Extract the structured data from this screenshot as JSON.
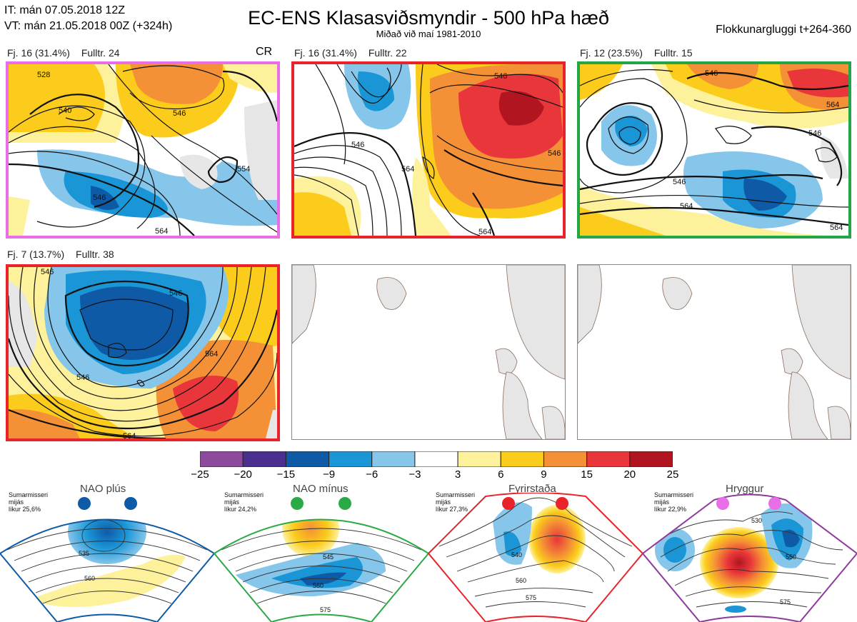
{
  "header": {
    "it_line": "IT: mán 07.05.2018 12Z",
    "vt_line": "VT: mán 21.05.2018 00Z  (+324h)",
    "title": "EC-ENS Klasasviðsmyndir - 500 hPa hæð",
    "subtitle": "Miðað við maí 1981-2010",
    "window": "Flokkunargluggi t+264-360"
  },
  "panels": [
    {
      "count": "Fj. 16 (31.4%)",
      "rep": "Fulltr. 24",
      "regime": "CR",
      "border_color": "#e86ee8",
      "contour_labels": [
        "528",
        "540",
        "546",
        "554",
        "546",
        "564"
      ]
    },
    {
      "count": "Fj. 16 (31.4%)",
      "rep": "Fulltr. 22",
      "border_color": "#e8232a",
      "contour_labels": [
        "546",
        "546",
        "564",
        "546",
        "564"
      ]
    },
    {
      "count": "Fj. 12 (23.5%)",
      "rep": "Fulltr. 15",
      "border_color": "#23a647",
      "contour_labels": [
        "546",
        "564",
        "546",
        "546",
        "564",
        "564"
      ]
    },
    {
      "count": "Fj. 7 (13.7%)",
      "rep": "Fulltr. 38",
      "border_color": "#e8232a",
      "contour_labels": [
        "546",
        "546",
        "546",
        "564",
        "564"
      ]
    }
  ],
  "colorbar": {
    "colors": [
      "#8d4a9c",
      "#4a2f8f",
      "#0f5aa6",
      "#1a95d6",
      "#86c6ea",
      "#ffffff",
      "#fdf19b",
      "#fbcc1b",
      "#f49035",
      "#e8363a",
      "#b11620"
    ],
    "ticks": [
      "−25",
      "−20",
      "−15",
      "−9",
      "−6",
      "−3",
      "3",
      "6",
      "9",
      "15",
      "20",
      "25"
    ]
  },
  "regimes": [
    {
      "name": "NAO plús",
      "season": "Sumarmisseri",
      "method": "mijás",
      "likelihood": "líkur 25,6%",
      "color": "#0d5aa7",
      "labels": [
        "535",
        "560"
      ]
    },
    {
      "name": "NAO mínus",
      "season": "Sumarmisseri",
      "method": "mijás",
      "likelihood": "líkur 24,2%",
      "color": "#2aaa45",
      "labels": [
        "545",
        "560",
        "575"
      ]
    },
    {
      "name": "Fyrirstaða",
      "season": "Sumarmisseri",
      "method": "mijás",
      "likelihood": "líkur 27,3%",
      "color": "#e8232a",
      "labels": [
        "540",
        "560",
        "575"
      ]
    },
    {
      "name": "Hryggur",
      "season": "Sumarmisseri",
      "method": "mijás",
      "likelihood": "líkur 22,9%",
      "color": "#e86ee8",
      "labels": [
        "530",
        "550",
        "575"
      ]
    }
  ]
}
